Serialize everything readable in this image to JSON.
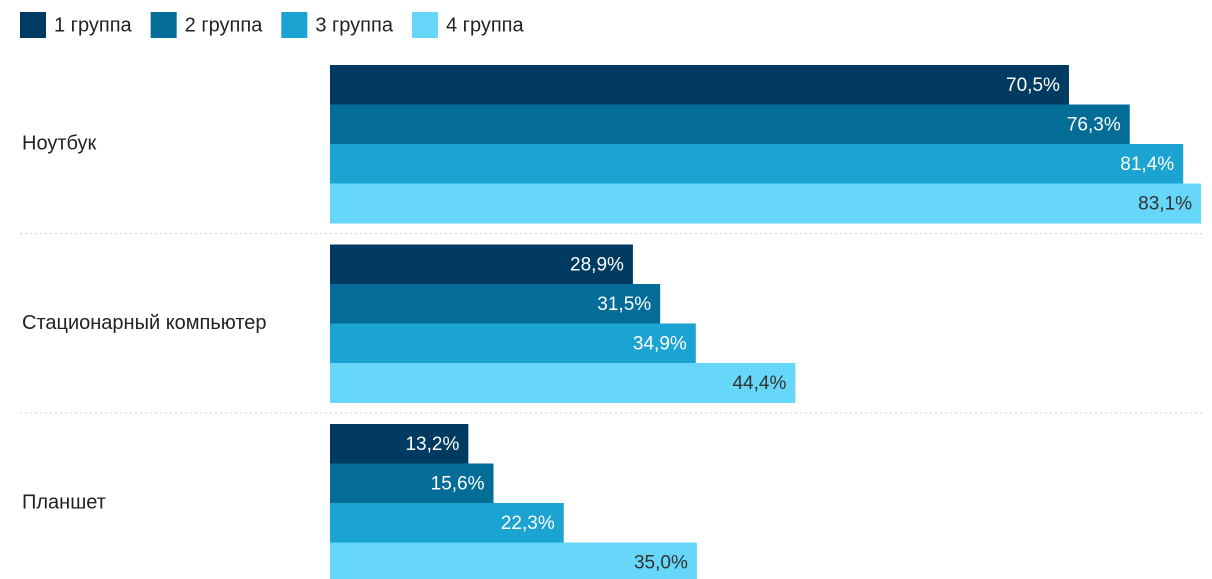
{
  "chart_data": {
    "type": "bar",
    "orientation": "horizontal",
    "categories": [
      "Ноутбук",
      "Стационарный компьютер",
      "Планшет"
    ],
    "series": [
      {
        "name": "1 группа",
        "color": "#023b61",
        "values": [
          70.5,
          28.9,
          13.2
        ],
        "value_labels": [
          "70,5%",
          "28,9%",
          "13,2%"
        ]
      },
      {
        "name": "2 группа",
        "color": "#036d98",
        "values": [
          76.3,
          31.5,
          15.6
        ],
        "value_labels": [
          "76,3%",
          "31,5%",
          "15,6%"
        ]
      },
      {
        "name": "3 группа",
        "color": "#1ba3d1",
        "values": [
          81.4,
          34.9,
          22.3
        ],
        "value_labels": [
          "81,4%",
          "34,9%",
          "22,3%"
        ]
      },
      {
        "name": "4 группа",
        "color": "#66d7f8",
        "values": [
          83.1,
          44.4,
          35.0
        ],
        "value_labels": [
          "83,1%",
          "44,4%",
          "35,0%"
        ]
      }
    ],
    "legend": "top-left"
  }
}
